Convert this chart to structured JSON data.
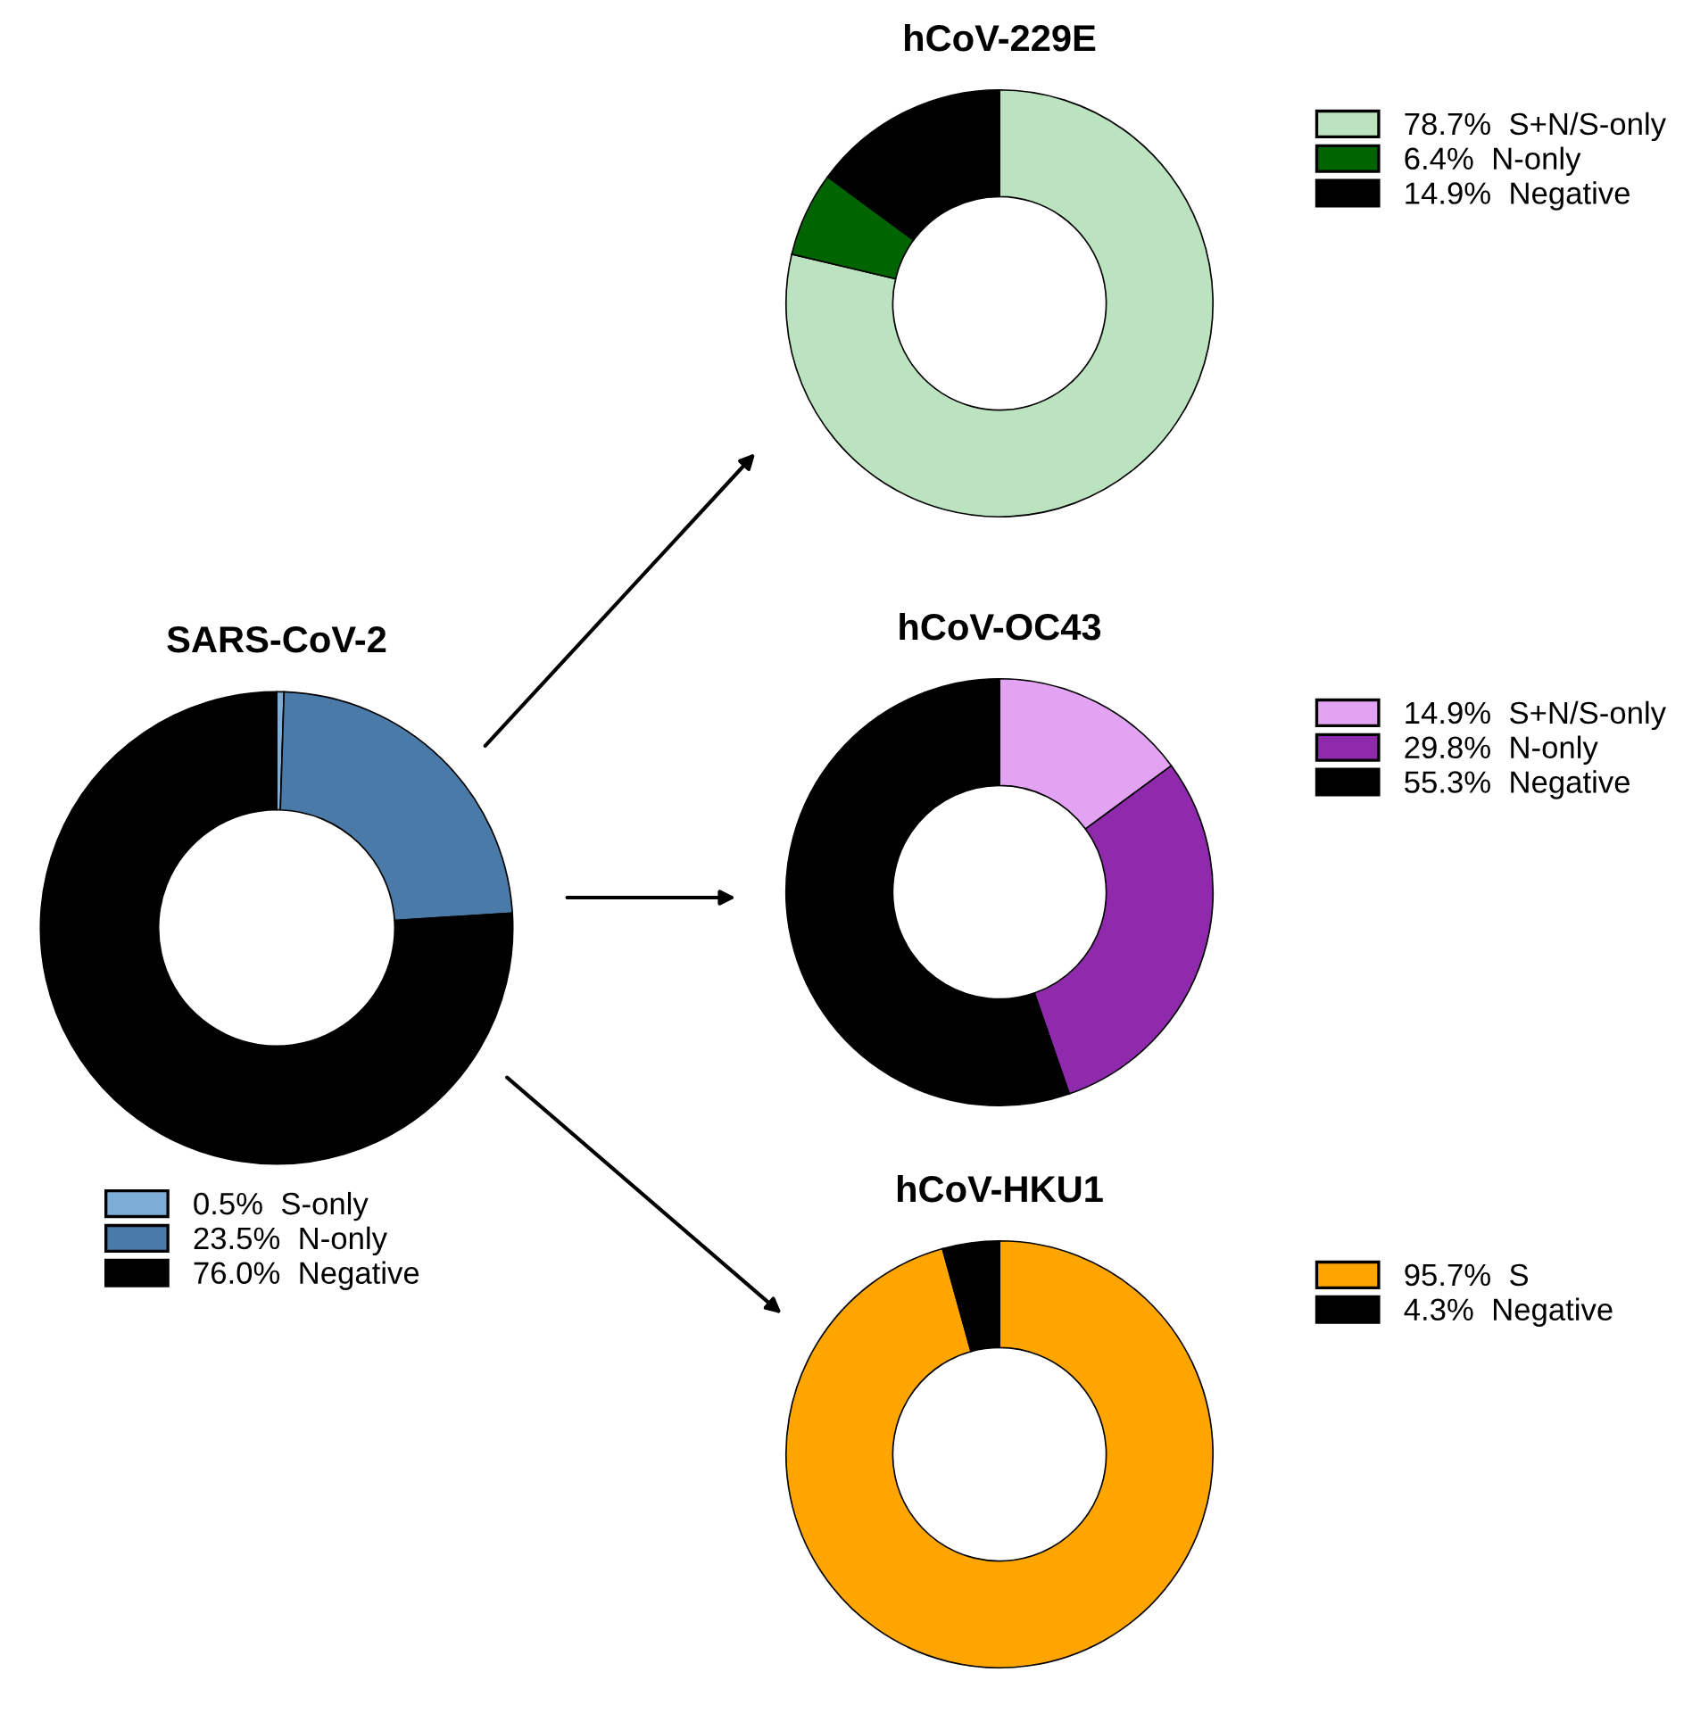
{
  "chart_data": [
    {
      "type": "donut",
      "title": "SARS-CoV-2",
      "categories": [
        "S-only",
        "N-only",
        "Negative"
      ],
      "values": [
        0.5,
        23.5,
        76.0
      ],
      "value_labels": [
        "0.5%",
        "23.5%",
        "76.0%"
      ],
      "colors": [
        "#7eaed6",
        "#4a7aa8",
        "#000000"
      ],
      "legend": "bottom"
    },
    {
      "type": "donut",
      "title": "hCoV-229E",
      "categories": [
        "S+N/S-only",
        "N-only",
        "Negative"
      ],
      "values": [
        78.7,
        6.4,
        14.9
      ],
      "value_labels": [
        "78.7%",
        "6.4%",
        "14.9%"
      ],
      "colors": [
        "#bce3bf",
        "#006400",
        "#000000"
      ],
      "legend": "right"
    },
    {
      "type": "donut",
      "title": "hCoV-OC43",
      "categories": [
        "S+N/S-only",
        "N-only",
        "Negative"
      ],
      "values": [
        14.9,
        29.8,
        55.3
      ],
      "value_labels": [
        "14.9%",
        "29.8%",
        "55.3%"
      ],
      "colors": [
        "#e2a3f2",
        "#8e2aab",
        "#000000"
      ],
      "legend": "right"
    },
    {
      "type": "donut",
      "title": "hCoV-HKU1",
      "categories": [
        "S",
        "Negative"
      ],
      "values": [
        95.7,
        4.3
      ],
      "value_labels": [
        "95.7%",
        "4.3%"
      ],
      "colors": [
        "#ffa500",
        "#000000"
      ],
      "legend": "right"
    }
  ]
}
